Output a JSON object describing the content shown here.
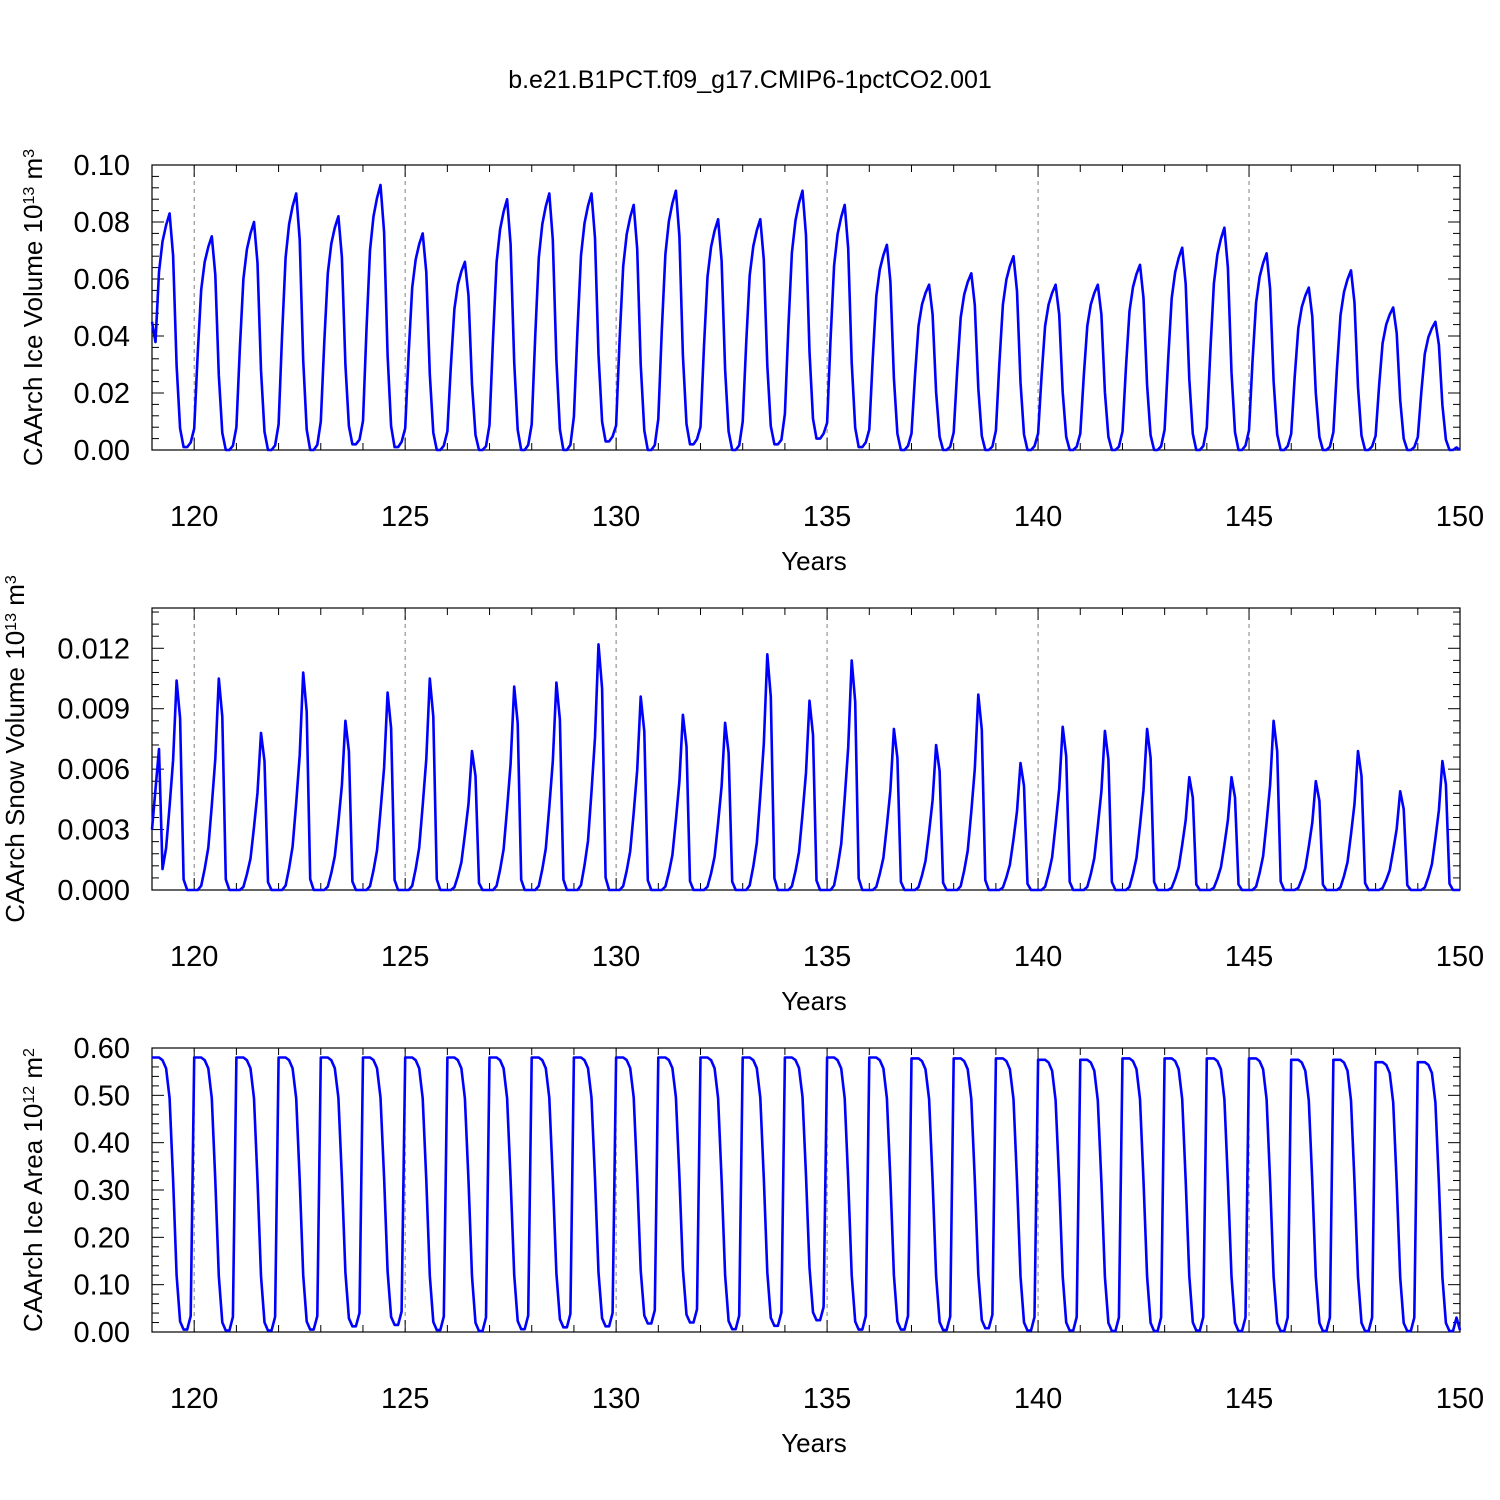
{
  "title": "b.e21.B1PCT.f09_g17.CMIP6-1pctCO2.001",
  "colors": {
    "series": "#0000ff",
    "axes": "#000000",
    "grid": "#808080"
  },
  "chart_data": [
    {
      "type": "line",
      "title": "",
      "xlabel": "Years",
      "ylabel": "CAArch Ice Volume 10",
      "ylabel_exp": "13",
      "ylabel_unit": " m",
      "ylabel_unit_exp": "3",
      "xlim": [
        119,
        150
      ],
      "ylim": [
        0,
        0.1
      ],
      "xticks": [
        "120",
        "125",
        "130",
        "135",
        "140",
        "145",
        "150"
      ],
      "yticks": [
        "0.00",
        "0.02",
        "0.04",
        "0.06",
        "0.08",
        "0.10"
      ],
      "grid": "dashed vertical at major x ticks",
      "series": [
        {
          "x_start": 119.0,
          "x_step": 0.0833333,
          "peaks": [
            0.083,
            0.075,
            0.08,
            0.09,
            0.082,
            0.093,
            0.076,
            0.066,
            0.088,
            0.09,
            0.09,
            0.086,
            0.091,
            0.081,
            0.081,
            0.091,
            0.086,
            0.072,
            0.058,
            0.062,
            0.068,
            0.058,
            0.058,
            0.065,
            0.071,
            0.078,
            0.069,
            0.057,
            0.063,
            0.05,
            0.045
          ],
          "troughs": [
            0.001,
            0.0,
            0.0,
            0.0,
            0.002,
            0.001,
            0.0,
            0.0,
            0.0,
            0.0,
            0.003,
            0.0,
            0.002,
            0.0,
            0.002,
            0.004,
            0.001,
            0.0,
            0.0,
            0.0,
            0.0,
            0.0,
            0.0,
            0.0,
            0.0,
            0.0,
            0.0,
            0.0,
            0.0,
            0.0,
            0.0
          ]
        }
      ]
    },
    {
      "type": "line",
      "title": "",
      "xlabel": "Years",
      "ylabel": "CAArch Snow Volume 10",
      "ylabel_exp": "13",
      "ylabel_unit": " m",
      "ylabel_unit_exp": "3",
      "xlim": [
        119,
        150
      ],
      "ylim": [
        0,
        0.014
      ],
      "xticks": [
        "120",
        "125",
        "130",
        "135",
        "140",
        "145",
        "150"
      ],
      "yticks": [
        "0.000",
        "0.003",
        "0.006",
        "0.009",
        "0.012"
      ],
      "grid": "dashed vertical at major x ticks",
      "series": [
        {
          "x_start": 119.0,
          "x_step": 0.0833333,
          "peaks": [
            0.0104,
            0.0105,
            0.0078,
            0.0108,
            0.0084,
            0.0098,
            0.0105,
            0.0069,
            0.0101,
            0.0103,
            0.0122,
            0.0096,
            0.0087,
            0.0083,
            0.0117,
            0.0094,
            0.0114,
            0.008,
            0.0072,
            0.0097,
            0.0063,
            0.0081,
            0.0079,
            0.008,
            0.0056,
            0.0056,
            0.0084,
            0.0054,
            0.0069,
            0.0049,
            0.0064
          ],
          "troughs": [
            0.0,
            0.0,
            0.0,
            0.0,
            0.0,
            0.0,
            0.0,
            0.0,
            0.0,
            0.0,
            0.0,
            0.0,
            0.0,
            0.0,
            0.0,
            0.0,
            0.0,
            0.0,
            0.0,
            0.0,
            0.0,
            0.0,
            0.0,
            0.0,
            0.0,
            0.0,
            0.0,
            0.0,
            0.0,
            0.0,
            0.0
          ]
        }
      ]
    },
    {
      "type": "line",
      "title": "",
      "xlabel": "Years",
      "ylabel": "CAArch Ice Area 10",
      "ylabel_exp": "12",
      "ylabel_unit": " m",
      "ylabel_unit_exp": "2",
      "xlim": [
        119,
        150
      ],
      "ylim": [
        0,
        0.6
      ],
      "xticks": [
        "120",
        "125",
        "130",
        "135",
        "140",
        "145",
        "150"
      ],
      "yticks": [
        "0.00",
        "0.10",
        "0.20",
        "0.30",
        "0.40",
        "0.50",
        "0.60"
      ],
      "grid": "dashed vertical at major x ticks",
      "series": [
        {
          "x_start": 119.0,
          "x_step": 0.0833333,
          "peaks": [
            0.58,
            0.58,
            0.58,
            0.58,
            0.58,
            0.58,
            0.58,
            0.58,
            0.58,
            0.58,
            0.58,
            0.58,
            0.58,
            0.58,
            0.58,
            0.58,
            0.58,
            0.58,
            0.578,
            0.578,
            0.578,
            0.575,
            0.575,
            0.578,
            0.578,
            0.578,
            0.578,
            0.575,
            0.575,
            0.57,
            0.57
          ],
          "troughs": [
            0.005,
            0.003,
            0.003,
            0.005,
            0.012,
            0.015,
            0.004,
            0.002,
            0.006,
            0.01,
            0.012,
            0.018,
            0.02,
            0.006,
            0.013,
            0.025,
            0.005,
            0.005,
            0.004,
            0.008,
            0.003,
            0.003,
            0.002,
            0.002,
            0.003,
            0.002,
            0.002,
            0.002,
            0.002,
            0.002,
            0.002
          ]
        }
      ]
    }
  ]
}
